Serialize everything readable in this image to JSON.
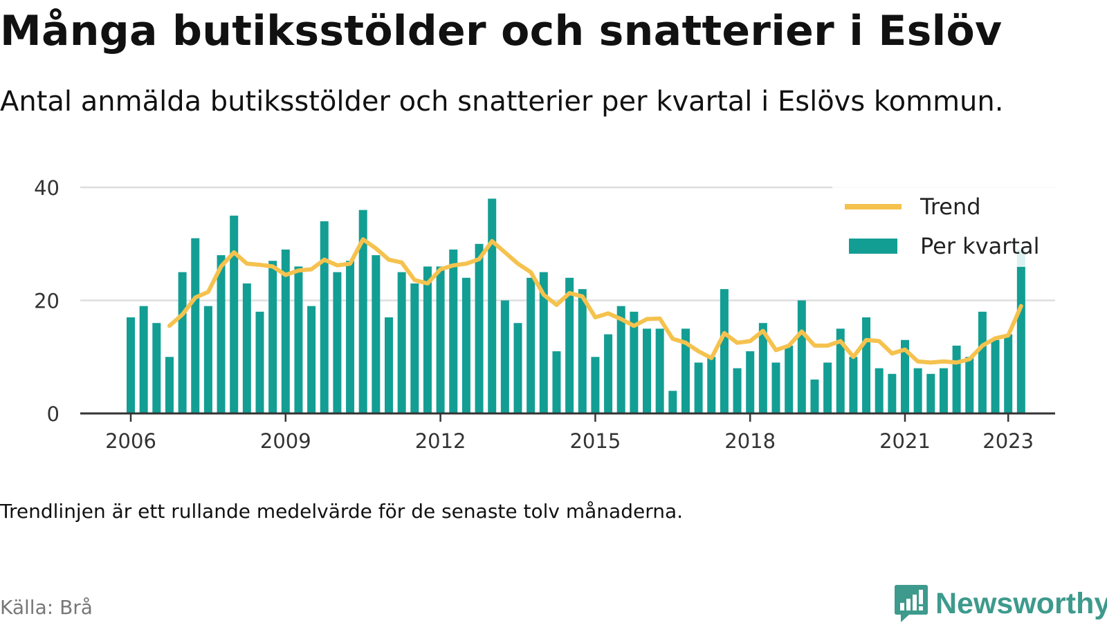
{
  "title": "Många butiksstölder och snatterier i Eslöv",
  "subtitle": "Antal anmälda butiksstölder och snatterier per kvartal i Eslövs kommun.",
  "footnote": "Trendlinjen är ett rullande medelvärde för de senaste tolv månaderna.",
  "source": "Källa: Brå",
  "logo": {
    "text": "Newsworthy",
    "icon": "newsworthy-logo-icon"
  },
  "colors": {
    "bars": "#139e94",
    "trend": "#f5c24e",
    "grid": "#dddddd",
    "axis": "#333333",
    "logo": "#3d9a8c"
  },
  "chart_data": {
    "type": "bar",
    "x_start": "2006 Q1",
    "x_unit": "quarter",
    "ylim": [
      0,
      40
    ],
    "yticks": [
      0,
      20,
      40
    ],
    "xticks": [
      "2006",
      "2009",
      "2012",
      "2015",
      "2018",
      "2021",
      "2023"
    ],
    "grid": true,
    "legend_position": "top-right",
    "series": [
      {
        "name": "Per kvartal",
        "type": "bar",
        "values": [
          17,
          19,
          16,
          10,
          25,
          31,
          19,
          28,
          35,
          23,
          18,
          27,
          29,
          26,
          19,
          34,
          25,
          27,
          36,
          28,
          17,
          25,
          23,
          26,
          26,
          29,
          24,
          30,
          38,
          20,
          16,
          24,
          25,
          11,
          24,
          22,
          10,
          14,
          19,
          18,
          15,
          15,
          4,
          15,
          9,
          10,
          22,
          8,
          11,
          16,
          9,
          12,
          20,
          6,
          9,
          15,
          10,
          17,
          8,
          7,
          13,
          8,
          7,
          8,
          12,
          10,
          18,
          13,
          14,
          29
        ]
      },
      {
        "name": "Trend",
        "type": "line",
        "start_index": 3,
        "values": [
          15.5,
          17.5,
          20.5,
          21.5,
          26,
          28.5,
          26.5,
          26.3,
          26,
          24.5,
          25.3,
          25.5,
          27.2,
          26.2,
          26.5,
          30.8,
          29.2,
          27.2,
          26.7,
          23.6,
          23,
          25.5,
          26.2,
          26.5,
          27.3,
          30.5,
          28.5,
          26.5,
          25,
          21,
          19.2,
          21.3,
          20.7,
          17,
          17.7,
          16.7,
          15.5,
          16.7,
          16.8,
          13.2,
          12.5,
          11,
          9.8,
          14.2,
          12.5,
          12.8,
          14.6,
          11.2,
          12,
          14.5,
          12,
          12,
          12.8,
          10,
          13,
          12.8,
          10.6,
          11.3,
          9.2,
          9,
          9.2,
          9,
          9.6,
          12,
          13.3,
          13.8,
          19
        ]
      }
    ]
  }
}
